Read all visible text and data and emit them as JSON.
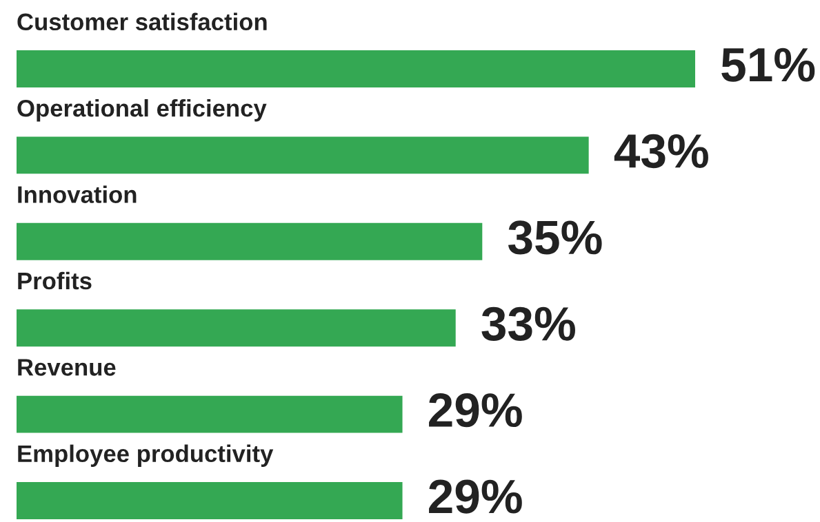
{
  "chart_data": {
    "type": "bar",
    "orientation": "horizontal",
    "categories": [
      "Customer satisfaction",
      "Operational efficiency",
      "Innovation",
      "Profits",
      "Revenue",
      "Employee productivity"
    ],
    "values": [
      51,
      43,
      35,
      33,
      29,
      29
    ],
    "value_labels": [
      "51%",
      "43%",
      "35%",
      "33%",
      "29%",
      "29%"
    ],
    "color": "#34a853"
  }
}
